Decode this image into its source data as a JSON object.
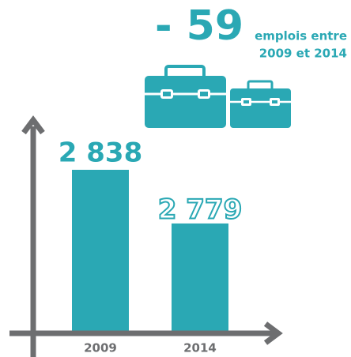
{
  "chart_data": {
    "type": "bar",
    "categories": [
      "2009",
      "2014"
    ],
    "values": [
      2838,
      2779
    ],
    "value_labels": [
      "2 838",
      "2 779"
    ],
    "color": "#2aa8b4",
    "ylim": [
      2660,
      2880
    ],
    "annotation": {
      "value": "- 59",
      "text": [
        "emplois entre",
        "2009 et 2014"
      ]
    }
  }
}
